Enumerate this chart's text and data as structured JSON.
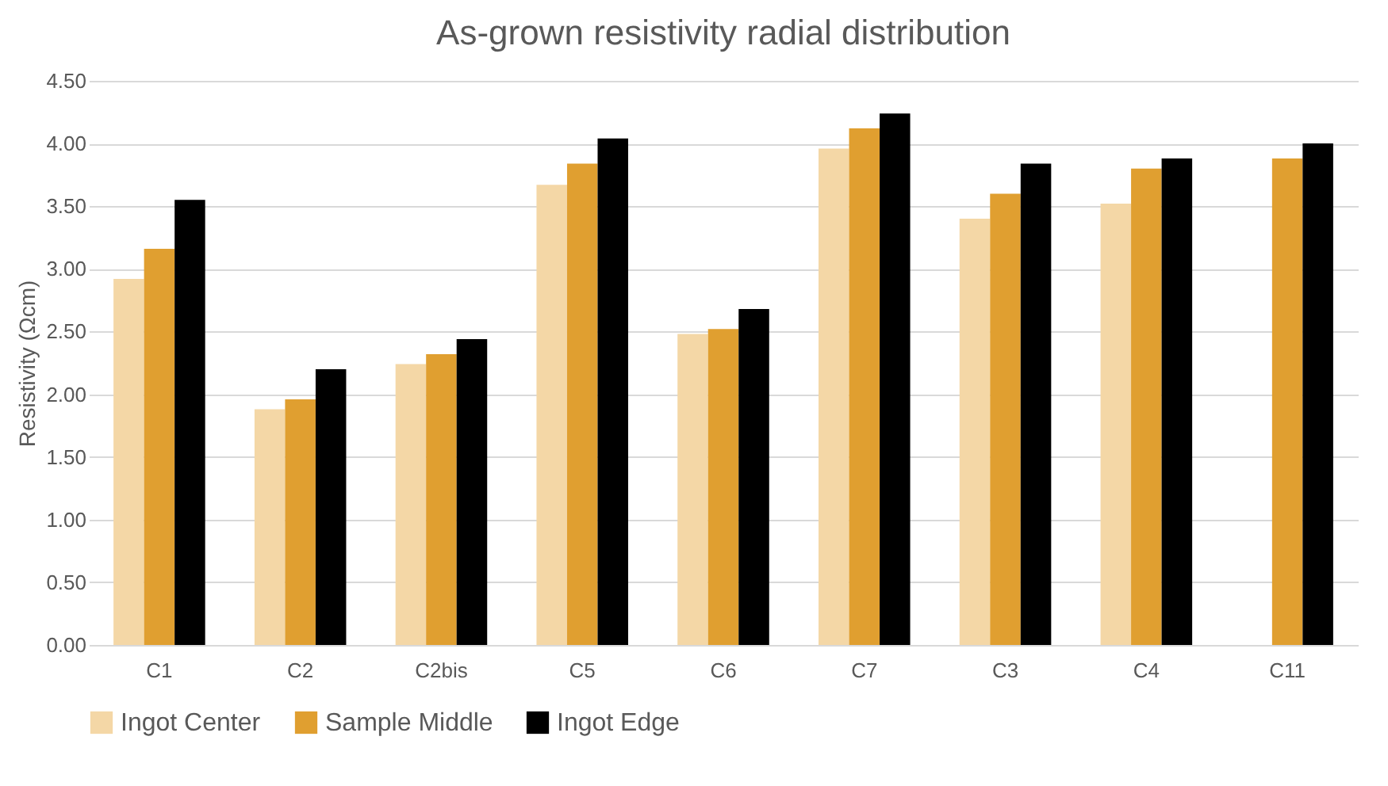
{
  "chart_data": {
    "type": "bar",
    "title": "As-grown resistivity radial distribution",
    "ylabel": "Resistivity (Ωcm)",
    "categories": [
      "C1",
      "C2",
      "C2bis",
      "C5",
      "C6",
      "C7",
      "C3",
      "C4",
      "C11"
    ],
    "series": [
      {
        "name": "Ingot Center",
        "color": "#f4d7a6",
        "values": [
          2.92,
          1.88,
          2.24,
          3.67,
          2.48,
          3.96,
          3.4,
          3.52,
          null
        ]
      },
      {
        "name": "Sample Middle",
        "color": "#e09f30",
        "values": [
          3.16,
          1.96,
          2.32,
          3.84,
          2.52,
          4.12,
          3.6,
          3.8,
          3.88
        ]
      },
      {
        "name": "Ingot Edge",
        "color": "#000000",
        "values": [
          3.55,
          2.2,
          2.44,
          4.04,
          2.68,
          4.24,
          3.84,
          3.88,
          4.0
        ]
      }
    ],
    "ylim": [
      0,
      4.5
    ],
    "yticks": [
      {
        "value": 0,
        "label": "0.00"
      },
      {
        "value": 0.5,
        "label": "0.50"
      },
      {
        "value": 1,
        "label": "1.00"
      },
      {
        "value": 1.5,
        "label": "1.50"
      },
      {
        "value": 2,
        "label": "2.00"
      },
      {
        "value": 2.5,
        "label": "2.50"
      },
      {
        "value": 3,
        "label": "3.00"
      },
      {
        "value": 3.5,
        "label": "3.50"
      },
      {
        "value": 4,
        "label": "4.00"
      },
      {
        "value": 4.5,
        "label": "4.50"
      }
    ],
    "grid": "y",
    "legend": "bottom"
  }
}
